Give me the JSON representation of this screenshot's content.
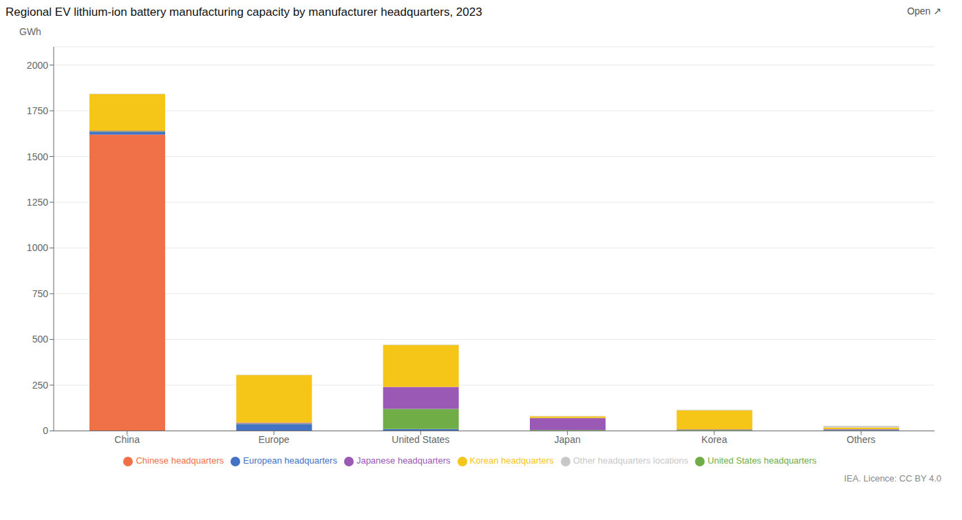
{
  "chart_data": {
    "type": "bar",
    "title": "Regional EV lithium-ion battery manufacturing capacity by manufacturer headquarters, 2023",
    "ylabel": "GWh",
    "annotations": [
      "Open ↗",
      "IEA. Licence: CC BY 4.0"
    ],
    "categories": [
      "China",
      "Europe",
      "United States",
      "Japan",
      "Korea",
      "Others"
    ],
    "series": [
      {
        "name": "Chinese headquarters",
        "color": "#f07048",
        "values": [
          1620,
          2,
          2,
          1,
          1,
          2
        ]
      },
      {
        "name": "European headquarters",
        "color": "#4472c4",
        "values": [
          15,
          35,
          8,
          2,
          2,
          2
        ]
      },
      {
        "name": "United States headquarters",
        "color": "#70ad47",
        "values": [
          3,
          3,
          110,
          2,
          2,
          2
        ]
      },
      {
        "name": "Japanese headquarters",
        "color": "#9b59b6",
        "values": [
          3,
          5,
          120,
          65,
          3,
          3
        ]
      },
      {
        "name": "Korean headquarters",
        "color": "#f5c518",
        "values": [
          200,
          260,
          230,
          10,
          105,
          10
        ]
      },
      {
        "name": "Other headquarters locations",
        "color": "#c8c8c8",
        "values": [
          2,
          2,
          2,
          2,
          2,
          8
        ]
      }
    ],
    "ylim": [
      0,
      2100
    ],
    "yticks": [
      0,
      250,
      500,
      750,
      1000,
      1250,
      1500,
      1750,
      2000
    ],
    "stacked": true,
    "grid": true,
    "legend": "bottom"
  }
}
